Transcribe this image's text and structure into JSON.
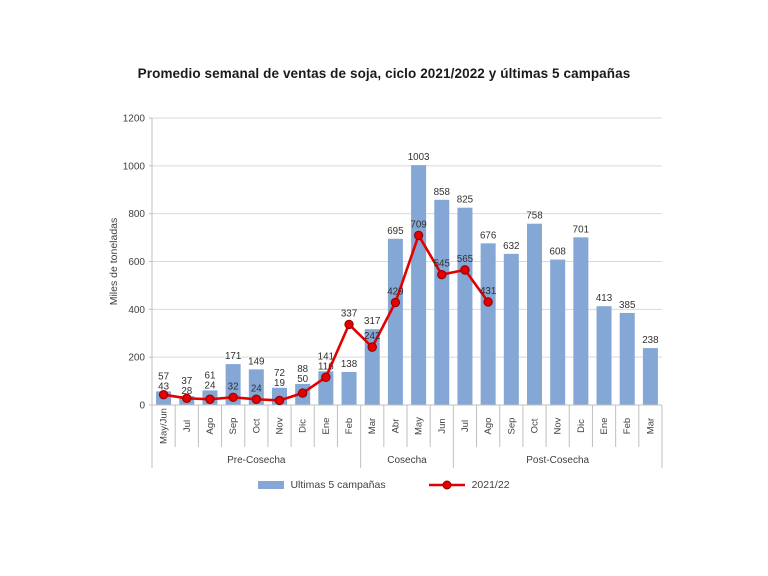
{
  "page": {
    "title": "Promedio semanal de ventas de soja, ciclo 2021/2022 y últimas 5 campañas"
  },
  "legend": {
    "bars_label": "Ultimas 5 campañas",
    "line_label": "2021/22"
  },
  "colors": {
    "bar": "#84a7d5",
    "line": "#e50000",
    "marker_stroke": "#8e0000",
    "grid": "#d9d9d9",
    "axis": "#bfbfbf",
    "text": "#3f3f3f",
    "label": "#303030"
  },
  "chart_data": {
    "type": "bar",
    "subtype": "bar+line combo",
    "title": "Promedio semanal de ventas de soja, ciclo 2021/2022 y últimas 5 campañas",
    "xlabel": "",
    "ylabel": "Miles de toneladas",
    "ylim": [
      0,
      1200
    ],
    "ytick_step": 200,
    "grid": true,
    "legend_position": "bottom",
    "categories": [
      "May/Jun",
      "Jul",
      "Ago",
      "Sep",
      "Oct",
      "Nov",
      "Dic",
      "Ene",
      "Feb",
      "Mar",
      "Abr",
      "May",
      "Jun",
      "Jul",
      "Ago",
      "Sep",
      "Oct",
      "Nov",
      "Dic",
      "Ene",
      "Feb",
      "Mar"
    ],
    "groups": [
      {
        "label": "Pre-Cosecha",
        "start": 0,
        "end": 8
      },
      {
        "label": "Cosecha",
        "start": 9,
        "end": 12
      },
      {
        "label": "Post-Cosecha",
        "start": 13,
        "end": 21
      }
    ],
    "series": [
      {
        "name": "Ultimas 5 campañas",
        "type": "bar",
        "values": [
          57,
          37,
          61,
          171,
          149,
          72,
          88,
          141,
          138,
          317,
          695,
          1003,
          858,
          825,
          676,
          632,
          758,
          608,
          701,
          413,
          385,
          238
        ]
      },
      {
        "name": "2021/22",
        "type": "line",
        "values": [
          43,
          28,
          24,
          32,
          24,
          19,
          50,
          116,
          337,
          242,
          429,
          709,
          545,
          565,
          431,
          null,
          null,
          null,
          null,
          null,
          null,
          null
        ]
      }
    ]
  }
}
